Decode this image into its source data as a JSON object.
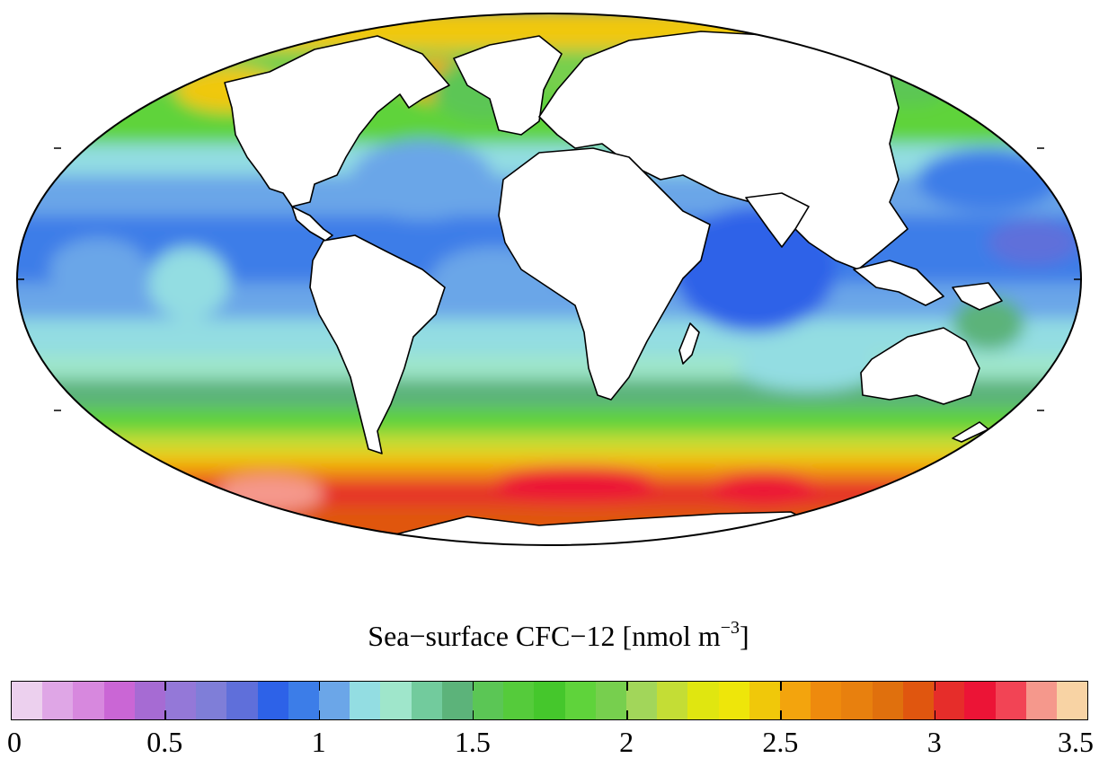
{
  "colorbar": {
    "title_main": "Sea−surface CFC−12 [nmol m",
    "title_sup": "−3",
    "title_end": "]",
    "min": 0,
    "max": 3.5,
    "step": 0.1,
    "ticks": [
      "0",
      "0.5",
      "1",
      "1.5",
      "2",
      "2.5",
      "3",
      "3.5"
    ],
    "colors": [
      "#ecd0ee",
      "#dfa6e6",
      "#d788de",
      "#ca66d5",
      "#a66bd3",
      "#9478d8",
      "#7f7ed8",
      "#5f6fda",
      "#2d62e8",
      "#3c7de8",
      "#6ba6e8",
      "#93dde2",
      "#9fe6cb",
      "#72cb9d",
      "#5cb37a",
      "#5bc655",
      "#55cb3b",
      "#45c72c",
      "#5fd33b",
      "#77cf4e",
      "#a2d65a",
      "#c4dd35",
      "#e0e610",
      "#eee60a",
      "#f0c80a",
      "#f3a40d",
      "#ee8a0d",
      "#e8800e",
      "#e0700d",
      "#e0560f",
      "#e62d2a",
      "#ec1436",
      "#f24455",
      "#f5988c",
      "#f8d3a4"
    ]
  },
  "map": {
    "land_color": "#ffffff",
    "coast_color": "#000000",
    "ocean_base": "#3c7de8"
  }
}
